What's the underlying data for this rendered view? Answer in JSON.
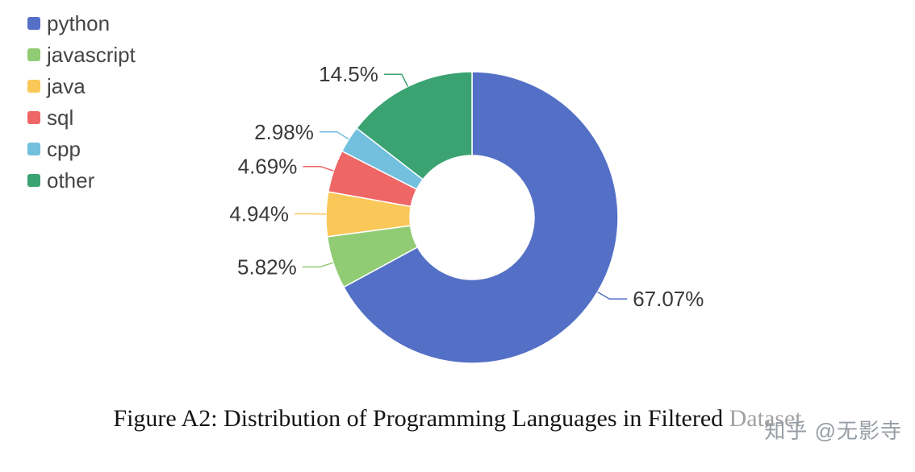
{
  "chart_data": {
    "type": "pie",
    "donut": true,
    "title": "",
    "legend_position": "top-left",
    "slices": [
      {
        "name": "python",
        "value": 67.07,
        "label": "67.07%",
        "color": "#5470c6"
      },
      {
        "name": "javascript",
        "value": 5.82,
        "label": "5.82%",
        "color": "#91cc75"
      },
      {
        "name": "java",
        "value": 4.94,
        "label": "4.94%",
        "color": "#fac858"
      },
      {
        "name": "sql",
        "value": 4.69,
        "label": "4.69%",
        "color": "#ee6666"
      },
      {
        "name": "cpp",
        "value": 2.98,
        "label": "2.98%",
        "color": "#73c0de"
      },
      {
        "name": "other",
        "value": 14.5,
        "label": "14.5%",
        "color": "#3ba272"
      }
    ],
    "label_text_color": "#3a3a3a",
    "start_angle_deg_clockwise_from_top": 0
  },
  "caption": "Figure A2: Distribution of Programming Languages in Filtered Dataset",
  "watermark": {
    "text": "知乎 @无影寺"
  }
}
